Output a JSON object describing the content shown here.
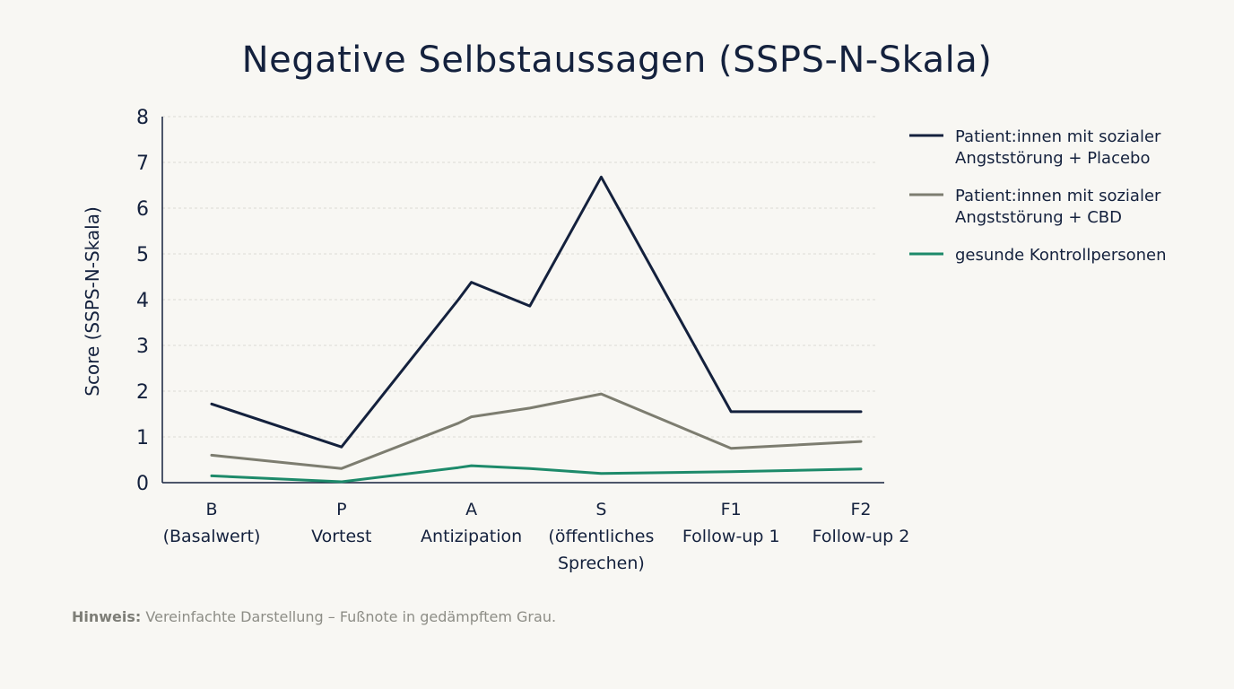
{
  "chart_data": {
    "type": "line",
    "title": "Negative Selbstaussagen (SSPS-N-Skala)",
    "ylabel": "Score (SSPS-N-Skala)",
    "xlabel": "",
    "ylim": [
      0,
      8
    ],
    "yticks": [
      0,
      1,
      2,
      3,
      4,
      5,
      6,
      7,
      8
    ],
    "grid": true,
    "legend_position": "right",
    "x": [
      0,
      1,
      1.9,
      2,
      2.45,
      3,
      4,
      5
    ],
    "category_ticks": [
      {
        "x": 0,
        "lines": [
          "B",
          "(Basalwert)"
        ]
      },
      {
        "x": 1,
        "lines": [
          "P",
          "Vortest"
        ]
      },
      {
        "x": 2,
        "lines": [
          "A",
          "Antizipation"
        ]
      },
      {
        "x": 3,
        "lines": [
          "S",
          "(öffentliches",
          "Sprechen)"
        ]
      },
      {
        "x": 4,
        "lines": [
          "F1",
          "Follow-up 1"
        ]
      },
      {
        "x": 5,
        "lines": [
          "F2",
          "Follow-up 2"
        ]
      }
    ],
    "series": [
      {
        "name": "Patient:innen mit sozialer Angststörung + Placebo",
        "legend_lines": [
          "Patient:innen mit sozialer",
          "Angststörung + Placebo"
        ],
        "color": "#14213d",
        "values": [
          1.72,
          0.78,
          4.0,
          4.38,
          3.86,
          6.68,
          1.55,
          1.55
        ]
      },
      {
        "name": "Patient:innen mit sozialer Angststörung + CBD",
        "legend_lines": [
          "Patient:innen mit sozialer",
          "Angststörung + CBD"
        ],
        "color": "#7d7d70",
        "values": [
          0.6,
          0.31,
          1.3,
          1.44,
          1.63,
          1.94,
          0.75,
          0.9
        ]
      },
      {
        "name": "gesunde Kontrollpersonen",
        "legend_lines": [
          "gesunde Kontrollpersonen"
        ],
        "color": "#1d8a6a",
        "values": [
          0.15,
          0.02,
          0.33,
          0.37,
          0.31,
          0.2,
          0.24,
          0.3
        ]
      }
    ]
  },
  "footnote": {
    "label": "Hinweis:",
    "text": " Vereinfachte Darstellung – Fußnote in gedämpftem Grau."
  }
}
